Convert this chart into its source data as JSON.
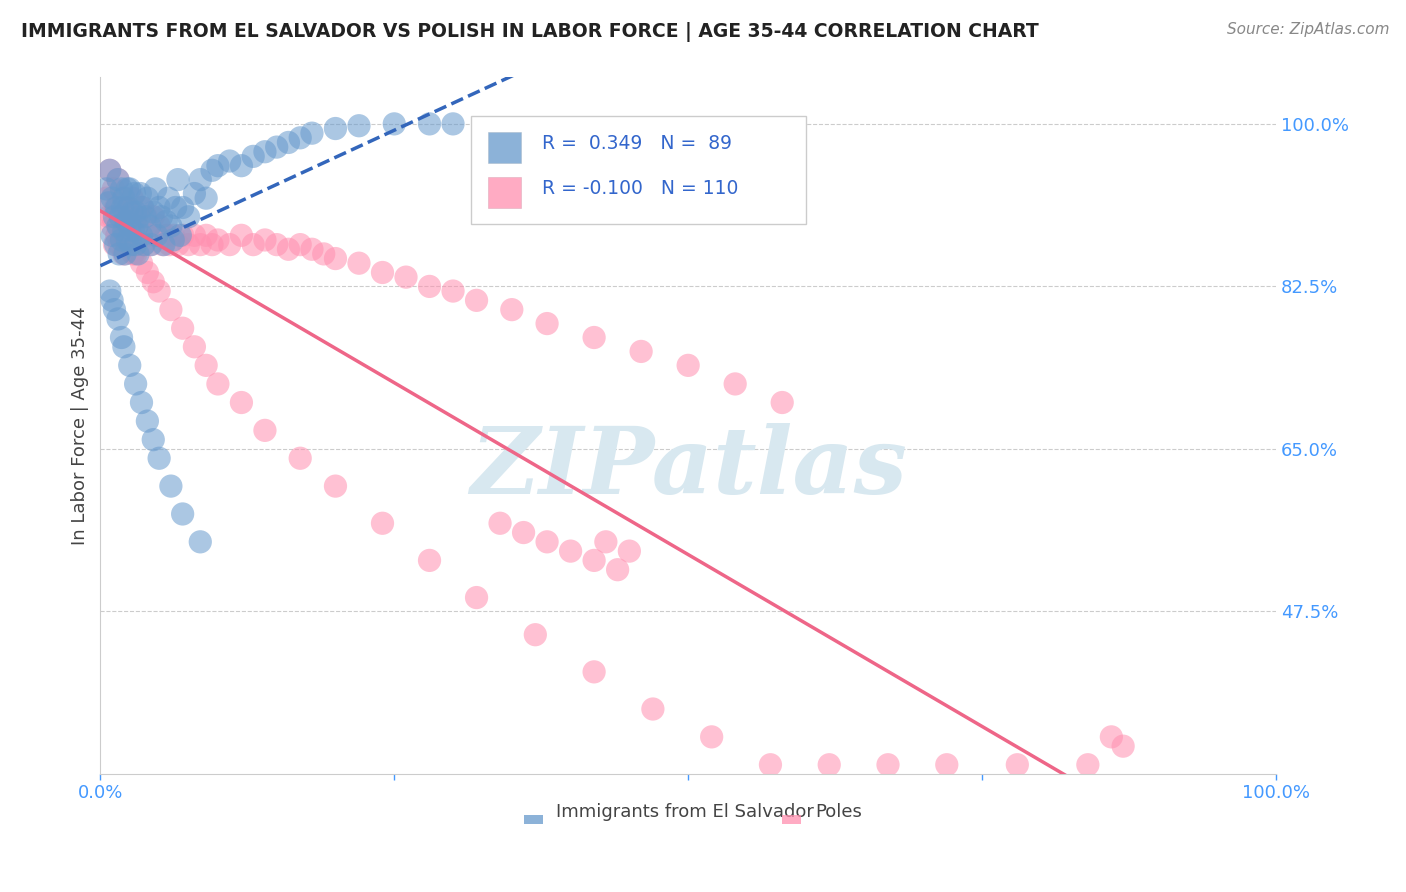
{
  "title": "IMMIGRANTS FROM EL SALVADOR VS POLISH IN LABOR FORCE | AGE 35-44 CORRELATION CHART",
  "source": "Source: ZipAtlas.com",
  "ylabel": "In Labor Force | Age 35-44",
  "xlim": [
    0.0,
    1.0
  ],
  "ylim": [
    0.3,
    1.05
  ],
  "yticks_right": [
    0.475,
    0.65,
    0.825,
    1.0
  ],
  "ytick_labels_right": [
    "47.5%",
    "65.0%",
    "82.5%",
    "100.0%"
  ],
  "blue_R": 0.349,
  "blue_N": 89,
  "pink_R": -0.1,
  "pink_N": 110,
  "blue_color": "#6699CC",
  "pink_color": "#FF8FAF",
  "blue_label": "Immigrants from El Salvador",
  "pink_label": "Poles",
  "background_color": "#FFFFFF",
  "blue_trend_color": "#3366BB",
  "pink_trend_color": "#EE6688",
  "watermark_text": "ZIPatlas",
  "blue_scatter_x": [
    0.005,
    0.007,
    0.008,
    0.01,
    0.01,
    0.012,
    0.013,
    0.014,
    0.015,
    0.015,
    0.016,
    0.017,
    0.018,
    0.018,
    0.019,
    0.02,
    0.02,
    0.021,
    0.022,
    0.023,
    0.023,
    0.024,
    0.025,
    0.025,
    0.026,
    0.027,
    0.028,
    0.029,
    0.03,
    0.03,
    0.031,
    0.032,
    0.033,
    0.034,
    0.035,
    0.036,
    0.037,
    0.038,
    0.04,
    0.042,
    0.043,
    0.045,
    0.047,
    0.048,
    0.05,
    0.052,
    0.054,
    0.056,
    0.058,
    0.06,
    0.062,
    0.064,
    0.066,
    0.068,
    0.07,
    0.075,
    0.08,
    0.085,
    0.09,
    0.095,
    0.1,
    0.11,
    0.12,
    0.13,
    0.14,
    0.15,
    0.16,
    0.17,
    0.18,
    0.2,
    0.22,
    0.25,
    0.28,
    0.3,
    0.008,
    0.01,
    0.012,
    0.015,
    0.018,
    0.02,
    0.025,
    0.03,
    0.035,
    0.04,
    0.045,
    0.05,
    0.06,
    0.07,
    0.085
  ],
  "blue_scatter_y": [
    0.93,
    0.915,
    0.95,
    0.88,
    0.92,
    0.9,
    0.87,
    0.91,
    0.94,
    0.89,
    0.86,
    0.9,
    0.93,
    0.875,
    0.91,
    0.885,
    0.92,
    0.86,
    0.895,
    0.93,
    0.875,
    0.91,
    0.89,
    0.93,
    0.87,
    0.905,
    0.885,
    0.925,
    0.87,
    0.905,
    0.89,
    0.86,
    0.9,
    0.925,
    0.88,
    0.91,
    0.87,
    0.9,
    0.92,
    0.89,
    0.87,
    0.905,
    0.93,
    0.88,
    0.91,
    0.9,
    0.87,
    0.895,
    0.92,
    0.89,
    0.875,
    0.91,
    0.94,
    0.88,
    0.91,
    0.9,
    0.925,
    0.94,
    0.92,
    0.95,
    0.955,
    0.96,
    0.955,
    0.965,
    0.97,
    0.975,
    0.98,
    0.985,
    0.99,
    0.995,
    0.998,
    1.0,
    1.0,
    1.0,
    0.82,
    0.81,
    0.8,
    0.79,
    0.77,
    0.76,
    0.74,
    0.72,
    0.7,
    0.68,
    0.66,
    0.64,
    0.61,
    0.58,
    0.55
  ],
  "pink_scatter_x": [
    0.005,
    0.007,
    0.008,
    0.01,
    0.011,
    0.012,
    0.013,
    0.014,
    0.015,
    0.016,
    0.017,
    0.018,
    0.019,
    0.02,
    0.021,
    0.022,
    0.023,
    0.024,
    0.025,
    0.026,
    0.027,
    0.028,
    0.029,
    0.03,
    0.031,
    0.033,
    0.035,
    0.037,
    0.039,
    0.041,
    0.043,
    0.045,
    0.047,
    0.05,
    0.053,
    0.056,
    0.059,
    0.062,
    0.066,
    0.07,
    0.075,
    0.08,
    0.085,
    0.09,
    0.095,
    0.1,
    0.11,
    0.12,
    0.13,
    0.14,
    0.15,
    0.16,
    0.17,
    0.18,
    0.19,
    0.2,
    0.22,
    0.24,
    0.26,
    0.28,
    0.3,
    0.32,
    0.35,
    0.38,
    0.42,
    0.46,
    0.5,
    0.54,
    0.58,
    0.01,
    0.015,
    0.02,
    0.025,
    0.03,
    0.035,
    0.04,
    0.045,
    0.05,
    0.06,
    0.07,
    0.08,
    0.09,
    0.1,
    0.12,
    0.14,
    0.17,
    0.2,
    0.24,
    0.28,
    0.32,
    0.37,
    0.42,
    0.47,
    0.52,
    0.57,
    0.62,
    0.67,
    0.72,
    0.78,
    0.84,
    0.86,
    0.87,
    0.43,
    0.45,
    0.34,
    0.36,
    0.38,
    0.4,
    0.42,
    0.44
  ],
  "pink_scatter_y": [
    0.92,
    0.9,
    0.95,
    0.89,
    0.93,
    0.87,
    0.91,
    0.88,
    0.94,
    0.87,
    0.9,
    0.88,
    0.92,
    0.86,
    0.89,
    0.875,
    0.91,
    0.87,
    0.9,
    0.88,
    0.92,
    0.86,
    0.895,
    0.87,
    0.9,
    0.88,
    0.91,
    0.87,
    0.9,
    0.88,
    0.87,
    0.9,
    0.88,
    0.89,
    0.87,
    0.88,
    0.87,
    0.88,
    0.87,
    0.88,
    0.87,
    0.88,
    0.87,
    0.88,
    0.87,
    0.875,
    0.87,
    0.88,
    0.87,
    0.875,
    0.87,
    0.865,
    0.87,
    0.865,
    0.86,
    0.855,
    0.85,
    0.84,
    0.835,
    0.825,
    0.82,
    0.81,
    0.8,
    0.785,
    0.77,
    0.755,
    0.74,
    0.72,
    0.7,
    0.9,
    0.89,
    0.88,
    0.87,
    0.86,
    0.85,
    0.84,
    0.83,
    0.82,
    0.8,
    0.78,
    0.76,
    0.74,
    0.72,
    0.7,
    0.67,
    0.64,
    0.61,
    0.57,
    0.53,
    0.49,
    0.45,
    0.41,
    0.37,
    0.34,
    0.31,
    0.31,
    0.31,
    0.31,
    0.31,
    0.31,
    0.34,
    0.33,
    0.55,
    0.54,
    0.57,
    0.56,
    0.55,
    0.54,
    0.53,
    0.52
  ]
}
